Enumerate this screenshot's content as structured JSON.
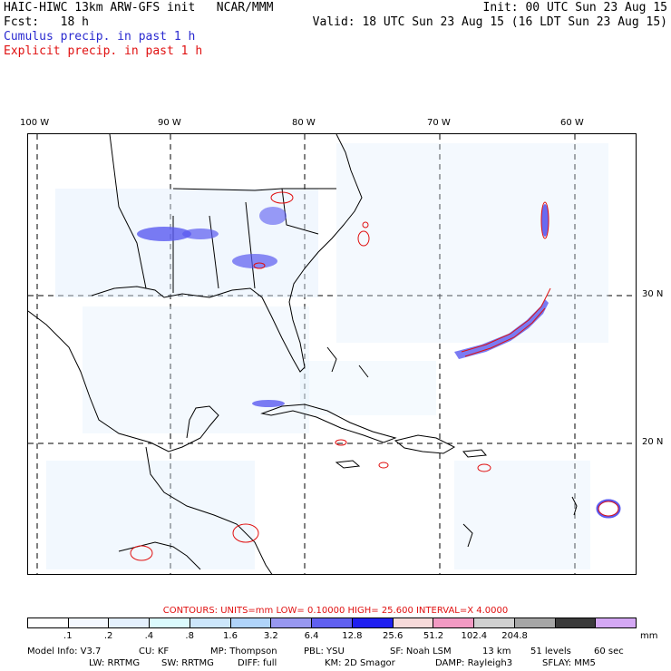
{
  "header": {
    "model": "HAIC-HIWC 13km ARW-GFS init   NCAR/MMM",
    "init": "Init: 00 UTC Sun 23 Aug 15",
    "fcst": "Fcst:   18 h",
    "valid": "Valid: 18 UTC Sun 23 Aug 15 (16 LDT Sun 23 Aug 15)",
    "cumulus_label": "Cumulus precip. in past 1 h",
    "explicit_label": "Explicit precip. in past 1 h"
  },
  "map": {
    "lon_labels": [
      "100 W",
      "90 W",
      "80 W",
      "70 W",
      "60 W"
    ],
    "lat_labels": [
      "30 N",
      "20 N"
    ],
    "colors": {
      "cumulus": "#5a5af0",
      "explicit": "#e01010",
      "grid": "#000000",
      "coast": "#000000"
    }
  },
  "contours": {
    "text": "CONTOURS:  UNITS=mm  LOW=  0.10000        HIGH=  25.600        INTERVAL=X   4.0000"
  },
  "colorbar": {
    "colors": [
      "#ffffff",
      "#f4f8ff",
      "#e4f0fd",
      "#dbfafd",
      "#cce6fb",
      "#b0d4fa",
      "#9898f0",
      "#6060f0",
      "#2020f0",
      "#f7dada",
      "#f29ac3",
      "#d0d0d0",
      "#a6a6a6",
      "#3a3a3a",
      "#d4a8f4"
    ],
    "labels": [
      ".1",
      ".2",
      ".4",
      ".8",
      "1.6",
      "3.2",
      "6.4",
      "12.8",
      "25.6",
      "51.2",
      "102.4",
      "204.8"
    ],
    "units": "mm"
  },
  "model_info": {
    "line1": [
      "Model Info: V3.7",
      "CU: KF",
      "MP: Thompson",
      "PBL: YSU",
      "SF: Noah LSM",
      "13 km",
      "51 levels",
      "60 sec"
    ],
    "line2": [
      "LW: RRTMG",
      "SW: RRTMG",
      "DIFF: full",
      "KM: 2D Smagor",
      "DAMP: Rayleigh3",
      "SFLAY: MM5"
    ]
  }
}
